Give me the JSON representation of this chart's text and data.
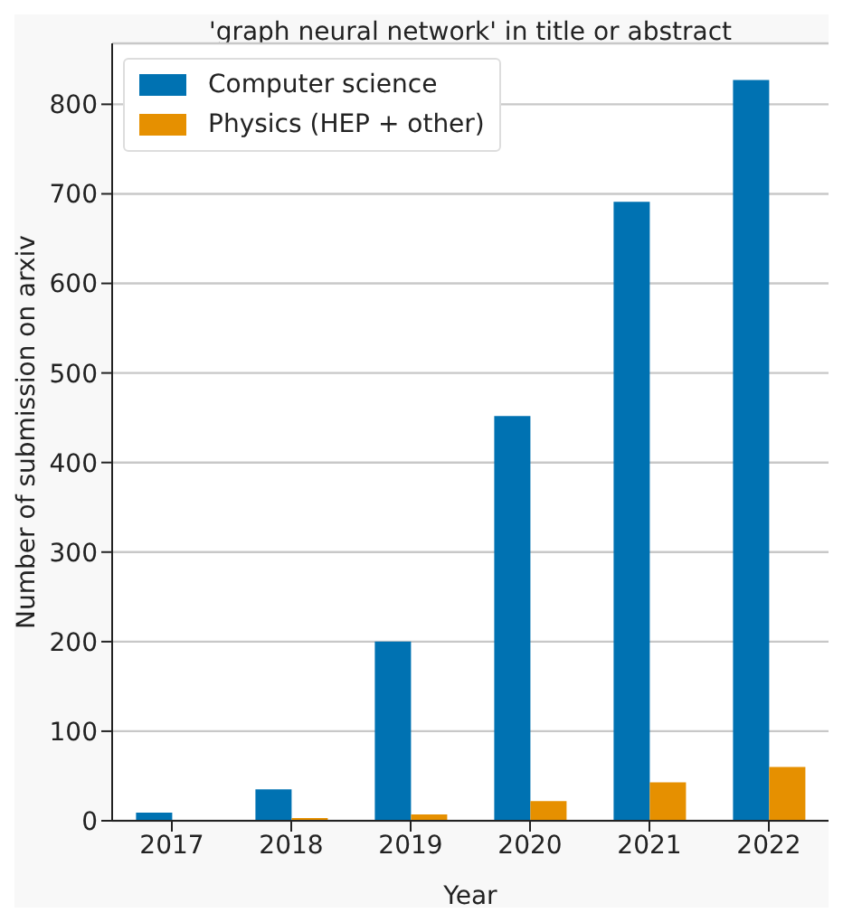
{
  "chart_data": {
    "type": "bar",
    "title": "'graph neural network' in title or abstract",
    "xlabel": "Year",
    "ylabel": "Number of submission on arxiv",
    "categories": [
      "2017",
      "2018",
      "2019",
      "2020",
      "2021",
      "2022"
    ],
    "series": [
      {
        "name": "Computer science",
        "color": "#0072b2",
        "values": [
          9,
          35,
          200,
          452,
          691,
          827
        ]
      },
      {
        "name": "Physics (HEP + other)",
        "color": "#e69000",
        "values": [
          0,
          3,
          7,
          22,
          43,
          60
        ]
      }
    ],
    "ylim": [
      0,
      868
    ],
    "yticks": [
      0,
      100,
      200,
      300,
      400,
      500,
      600,
      700,
      800
    ],
    "grid": "y",
    "legend": "top left"
  }
}
